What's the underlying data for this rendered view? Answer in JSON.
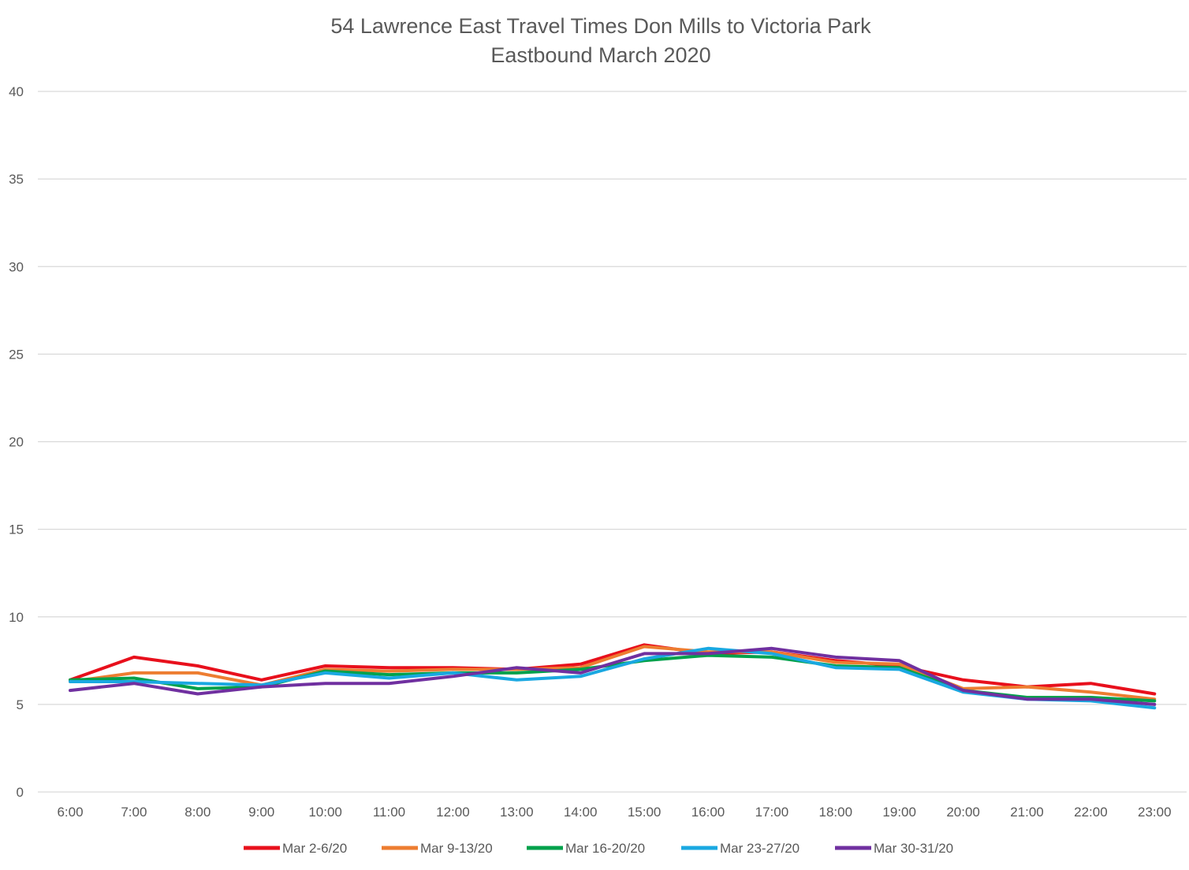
{
  "chart_data": {
    "type": "line",
    "title_lines": [
      "54 Lawrence East Travel Times Don Mills to Victoria Park",
      "Eastbound  March 2020"
    ],
    "xlabel": "",
    "ylabel": "",
    "ylim": [
      0,
      40
    ],
    "yticks": [
      "0",
      "5",
      "10",
      "15",
      "20",
      "25",
      "30",
      "35",
      "40"
    ],
    "grid": "horizontal",
    "legend_position": "bottom",
    "categories": [
      "6:00",
      "7:00",
      "8:00",
      "9:00",
      "10:00",
      "11:00",
      "12:00",
      "13:00",
      "14:00",
      "15:00",
      "16:00",
      "17:00",
      "18:00",
      "19:00",
      "20:00",
      "21:00",
      "22:00",
      "23:00"
    ],
    "series": [
      {
        "name": "Mar 2-6/20",
        "color": "#e8101c",
        "values": [
          6.4,
          7.7,
          7.2,
          6.4,
          7.2,
          7.1,
          7.1,
          7.0,
          7.3,
          8.4,
          7.9,
          8.0,
          7.5,
          7.2,
          6.4,
          6.0,
          6.2,
          5.6
        ]
      },
      {
        "name": "Mar 9-13/20",
        "color": "#ed7d31",
        "values": [
          6.3,
          6.8,
          6.8,
          6.1,
          7.0,
          6.9,
          7.0,
          7.0,
          7.1,
          8.3,
          8.0,
          8.0,
          7.4,
          7.3,
          5.9,
          6.0,
          5.7,
          5.3
        ]
      },
      {
        "name": "Mar 16-20/20",
        "color": "#00a14b",
        "values": [
          6.4,
          6.5,
          5.9,
          6.0,
          6.9,
          6.7,
          6.8,
          6.8,
          7.0,
          7.5,
          7.8,
          7.7,
          7.2,
          7.1,
          5.8,
          5.4,
          5.4,
          5.2
        ]
      },
      {
        "name": "Mar 23-27/20",
        "color": "#1aa8e1",
        "values": [
          6.3,
          6.3,
          6.2,
          6.1,
          6.8,
          6.5,
          6.8,
          6.4,
          6.6,
          7.6,
          8.2,
          7.9,
          7.1,
          7.0,
          5.7,
          5.3,
          5.2,
          4.8
        ]
      },
      {
        "name": "Mar 30-31/20",
        "color": "#7030a0",
        "values": [
          5.8,
          6.2,
          5.6,
          6.0,
          6.2,
          6.2,
          6.6,
          7.1,
          6.8,
          7.9,
          7.9,
          8.2,
          7.7,
          7.5,
          5.8,
          5.3,
          5.3,
          5.0
        ]
      }
    ]
  }
}
